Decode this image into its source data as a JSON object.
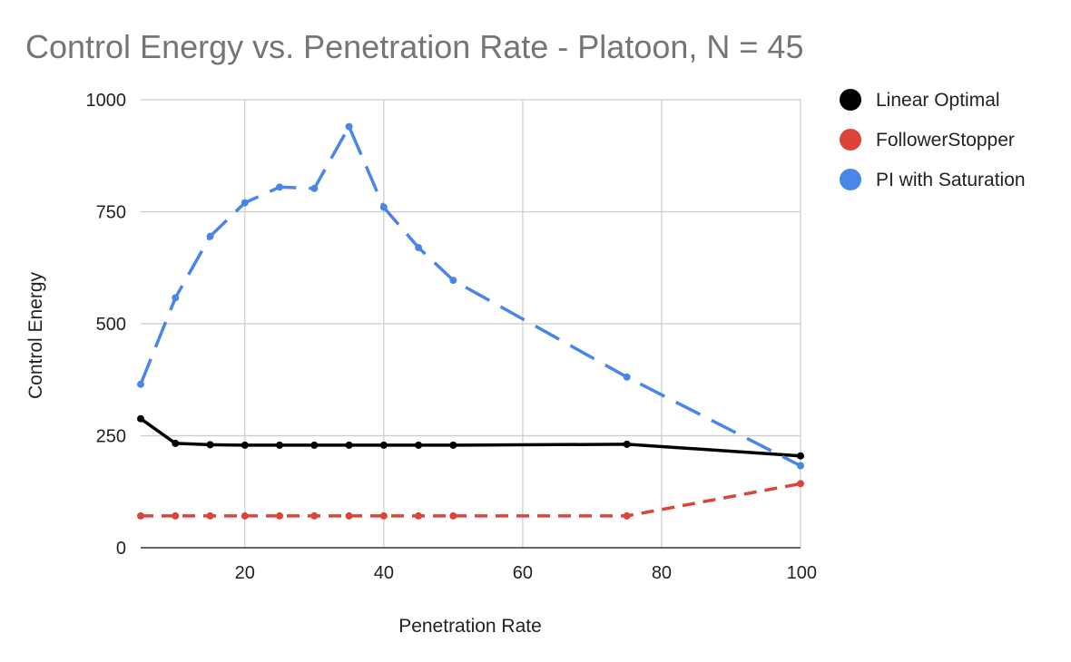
{
  "chart_data": {
    "type": "line",
    "title": "Control Energy vs. Penetration Rate - Platoon, N = 45",
    "xlabel": "Penetration Rate",
    "ylabel": "Control Energy",
    "xlim": [
      5,
      100
    ],
    "ylim": [
      0,
      1000
    ],
    "x_ticks": [
      20,
      40,
      60,
      80,
      100
    ],
    "y_ticks": [
      0,
      250,
      500,
      750,
      1000
    ],
    "x_tick_labels": [
      "20",
      "40",
      "60",
      "80",
      "100"
    ],
    "y_tick_labels": [
      "0",
      "250",
      "500",
      "750",
      "1000"
    ],
    "grid": true,
    "legend_position": "right",
    "series": [
      {
        "name": "Linear Optimal",
        "color": "#000000",
        "line_style": "solid",
        "x": [
          5,
          10,
          15,
          20,
          25,
          30,
          35,
          40,
          45,
          50,
          75,
          100
        ],
        "values": [
          288,
          233,
          230,
          229,
          229,
          229,
          229,
          229,
          229,
          229,
          231,
          205
        ]
      },
      {
        "name": "FollowerStopper",
        "color": "#db4437",
        "line_style": "dashed",
        "x": [
          5,
          10,
          15,
          20,
          25,
          30,
          35,
          40,
          45,
          50,
          75,
          100
        ],
        "values": [
          71,
          71,
          71,
          71,
          71,
          71,
          71,
          71,
          71,
          71,
          71,
          143
        ]
      },
      {
        "name": "PI with Saturation",
        "color": "#4a86e8",
        "line_style": "long-dashed",
        "x": [
          5,
          10,
          15,
          20,
          25,
          30,
          35,
          40,
          45,
          50,
          75,
          100
        ],
        "values": [
          365,
          558,
          695,
          770,
          805,
          802,
          940,
          760,
          670,
          597,
          381,
          183
        ]
      }
    ]
  }
}
